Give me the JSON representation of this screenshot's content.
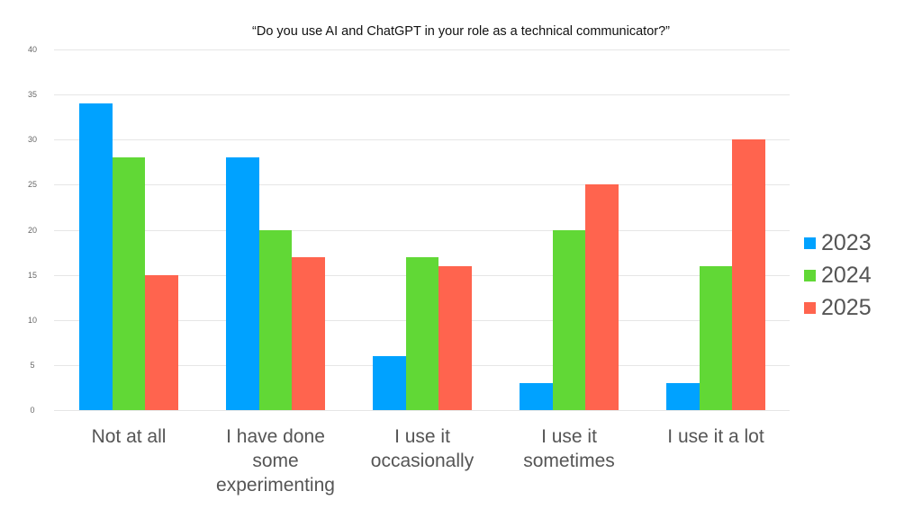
{
  "chart_data": {
    "type": "bar",
    "title": "“Do you use AI and ChatGPT in your role as a technical communicator?”",
    "xlabel": "",
    "ylabel": "",
    "ylim": [
      0,
      40
    ],
    "yticks": [
      0,
      5,
      10,
      15,
      20,
      25,
      30,
      35,
      40
    ],
    "grid": true,
    "legend_position": "right",
    "categories": [
      "Not at all",
      "I have done some experimenting",
      "I use it occasionally",
      "I use it sometimes",
      "I use it a lot"
    ],
    "series": [
      {
        "name": "2023",
        "color": "#00a2ff",
        "values": [
          34,
          28,
          6,
          3,
          3
        ]
      },
      {
        "name": "2024",
        "color": "#61d836",
        "values": [
          28,
          20,
          17,
          20,
          16
        ]
      },
      {
        "name": "2025",
        "color": "#ff644e",
        "values": [
          15,
          17,
          16,
          25,
          30
        ]
      }
    ]
  },
  "labels": {
    "title": "“Do you use AI and ChatGPT in your role as a technical communicator?”",
    "categories": [
      "Not at all",
      "I have done some experimenting",
      "I use it occasionally",
      "I use it sometimes",
      "I use it a lot"
    ],
    "legend": [
      "2023",
      "2024",
      "2025"
    ]
  }
}
